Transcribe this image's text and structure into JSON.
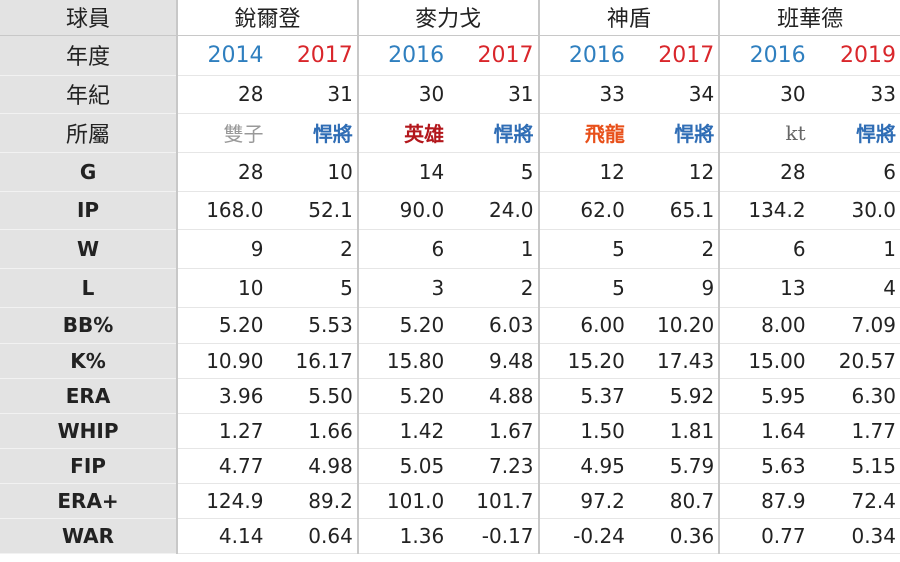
{
  "labels": {
    "player": "球員",
    "year": "年度",
    "age": "年紀",
    "team": "所屬"
  },
  "players": [
    "銳爾登",
    "麥力戈",
    "神盾",
    "班華德"
  ],
  "columns": [
    {
      "year": "2014",
      "year_color": "#2f7fbf",
      "age": "28",
      "team": "雙子",
      "team_color": "#999999"
    },
    {
      "year": "2017",
      "year_color": "#d9262b",
      "age": "31",
      "team": "悍將",
      "team_color": "#2f6db5"
    },
    {
      "year": "2016",
      "year_color": "#2f7fbf",
      "age": "30",
      "team": "英雄",
      "team_color": "#b3171c"
    },
    {
      "year": "2017",
      "year_color": "#d9262b",
      "age": "31",
      "team": "悍將",
      "team_color": "#2f6db5"
    },
    {
      "year": "2016",
      "year_color": "#2f7fbf",
      "age": "33",
      "team": "飛龍",
      "team_color": "#e8501a"
    },
    {
      "year": "2017",
      "year_color": "#d9262b",
      "age": "34",
      "team": "悍將",
      "team_color": "#2f6db5"
    },
    {
      "year": "2016",
      "year_color": "#2f7fbf",
      "age": "30",
      "team": "kt",
      "team_color": "#666666"
    },
    {
      "year": "2019",
      "year_color": "#d9262b",
      "age": "33",
      "team": "悍將",
      "team_color": "#2f6db5"
    }
  ],
  "stats": [
    {
      "label": "G",
      "values": [
        "28",
        "10",
        "14",
        "5",
        "12",
        "12",
        "28",
        "6"
      ]
    },
    {
      "label": "IP",
      "values": [
        "168.0",
        "52.1",
        "90.0",
        "24.0",
        "62.0",
        "65.1",
        "134.2",
        "30.0"
      ]
    },
    {
      "label": "W",
      "values": [
        "9",
        "2",
        "6",
        "1",
        "5",
        "2",
        "6",
        "1"
      ]
    },
    {
      "label": "L",
      "values": [
        "10",
        "5",
        "3",
        "2",
        "5",
        "9",
        "13",
        "4"
      ]
    },
    {
      "label": "BB%",
      "values": [
        "5.20",
        "5.53",
        "5.20",
        "6.03",
        "6.00",
        "10.20",
        "8.00",
        "7.09"
      ]
    },
    {
      "label": "K%",
      "values": [
        "10.90",
        "16.17",
        "15.80",
        "9.48",
        "15.20",
        "17.43",
        "15.00",
        "20.57"
      ]
    },
    {
      "label": "ERA",
      "values": [
        "3.96",
        "5.50",
        "5.20",
        "4.88",
        "5.37",
        "5.92",
        "5.95",
        "6.30"
      ]
    },
    {
      "label": "WHIP",
      "values": [
        "1.27",
        "1.66",
        "1.42",
        "1.67",
        "1.50",
        "1.81",
        "1.64",
        "1.77"
      ]
    },
    {
      "label": "FIP",
      "values": [
        "4.77",
        "4.98",
        "5.05",
        "7.23",
        "4.95",
        "5.79",
        "5.63",
        "5.15"
      ]
    },
    {
      "label": "ERA+",
      "values": [
        "124.9",
        "89.2",
        "101.0",
        "101.7",
        "97.2",
        "80.7",
        "87.9",
        "72.4"
      ]
    },
    {
      "label": "WAR",
      "values": [
        "4.14",
        "0.64",
        "1.36",
        "-0.17",
        "-0.24",
        "0.36",
        "0.77",
        "0.34"
      ]
    }
  ]
}
